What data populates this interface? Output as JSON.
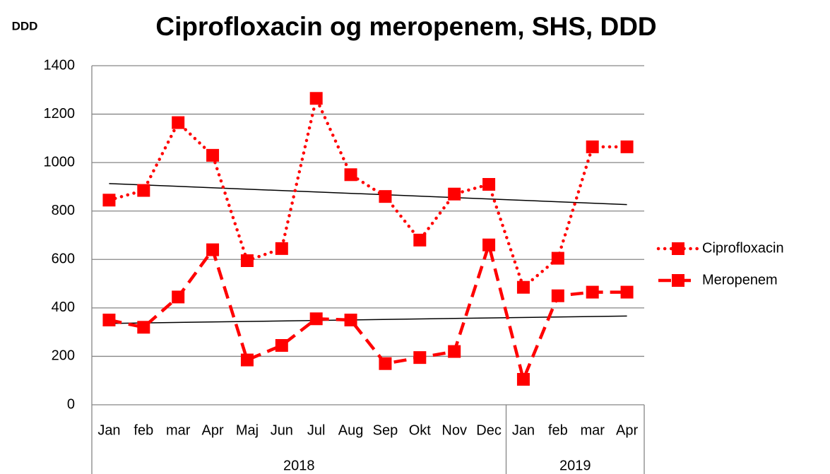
{
  "chart_data": {
    "type": "line",
    "title": "Ciprofloxacin og meropenem, SHS, DDD",
    "y_label": "DDD",
    "categories": [
      "Jan",
      "feb",
      "mar",
      "Apr",
      "Maj",
      "Jun",
      "Jul",
      "Aug",
      "Sep",
      "Okt",
      "Nov",
      "Dec",
      "Jan",
      "feb",
      "mar",
      "Apr"
    ],
    "groups": [
      {
        "label": "2018",
        "span": 12
      },
      {
        "label": "2019",
        "span": 4
      }
    ],
    "series": [
      {
        "name": "Ciprofloxacin",
        "color": "#ff0000",
        "style": "dotted",
        "values": [
          845,
          885,
          1165,
          1030,
          595,
          645,
          1265,
          950,
          860,
          680,
          870,
          910,
          485,
          605,
          1065,
          1065
        ]
      },
      {
        "name": "Meropenem",
        "color": "#ff0000",
        "style": "dashed",
        "values": [
          350,
          320,
          445,
          640,
          185,
          245,
          355,
          350,
          170,
          195,
          220,
          660,
          105,
          450,
          465,
          465
        ]
      }
    ],
    "trendline": true,
    "ylim": [
      0,
      1400
    ],
    "yticks": [
      0,
      200,
      400,
      600,
      800,
      1000,
      1200,
      1400
    ],
    "grid": true,
    "legend": "right"
  }
}
